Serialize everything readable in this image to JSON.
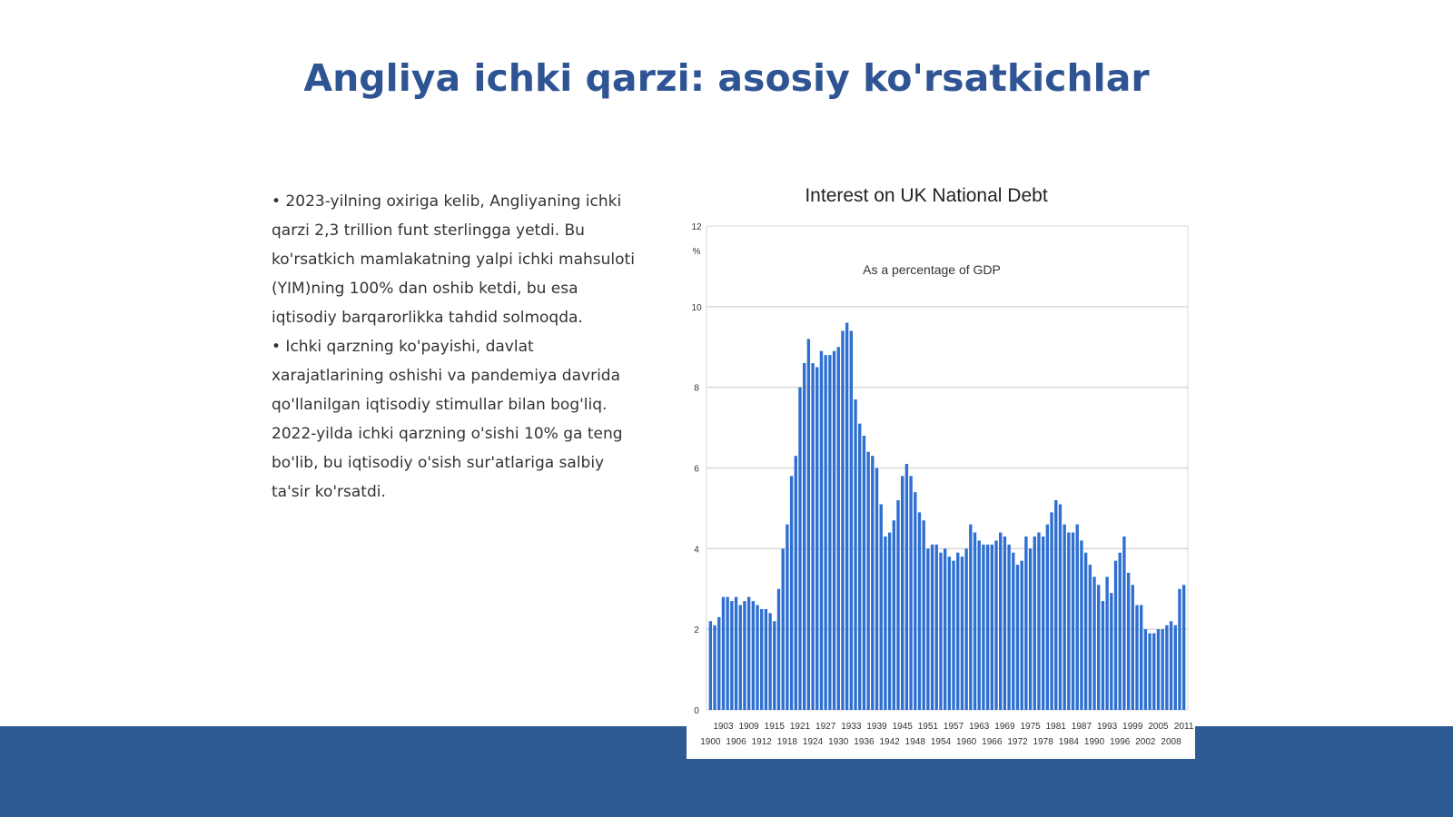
{
  "slide": {
    "title": "Angliya ichki qarzi: asosiy ko'rsatkichlar",
    "bullets": [
      "• 2023-yilning oxiriga kelib, Angliyaning ichki qarzi 2,3 trillion funt sterlingga yetdi. Bu ko'rsatkich mamlakatning yalpi ichki mahsuloti (YIM)ning 100% dan oshib ketdi, bu esa iqtisodiy barqarorlikka tahdid solmoqda.",
      "• Ichki qarzning ko'payishi, davlat xarajatlarining oshishi va pandemiya davrida qo'llanilgan iqtisodiy stimullar bilan bog'liq. 2022-yilda ichki qarzning o'sishi 10% ga teng bo'lib, bu iqtisodiy o'sish sur'atlariga salbiy ta'sir ko'rsatdi."
    ]
  },
  "colors": {
    "title": "#2f5494",
    "footer": "#2f5b95",
    "bars": "#2e6fd1",
    "grid": "#d9d9d9"
  },
  "chart_data": {
    "type": "bar",
    "title": "Interest on UK National Debt",
    "subtitle": "As a percentage of GDP",
    "ylabel": "%",
    "ylim": [
      0,
      12
    ],
    "yticks": [
      "0",
      "2",
      "4",
      "6",
      "8",
      "10",
      "12"
    ],
    "grid": true,
    "xticks_top": [
      "1903",
      "1909",
      "1915",
      "1921",
      "1927",
      "1933",
      "1939",
      "1945",
      "1951",
      "1957",
      "1963",
      "1969",
      "1975",
      "1981",
      "1987",
      "1993",
      "1999",
      "2005",
      "2011"
    ],
    "xticks_bottom": [
      "1900",
      "1906",
      "1912",
      "1918",
      "1924",
      "1930",
      "1936",
      "1942",
      "1948",
      "1954",
      "1960",
      "1966",
      "1972",
      "1978",
      "1984",
      "1990",
      "1996",
      "2002",
      "2008"
    ],
    "x_start": 1900,
    "values": [
      2.2,
      2.1,
      2.3,
      2.8,
      2.8,
      2.7,
      2.8,
      2.6,
      2.7,
      2.8,
      2.7,
      2.6,
      2.5,
      2.5,
      2.4,
      2.2,
      3.0,
      4.0,
      4.6,
      5.8,
      6.3,
      8.0,
      8.6,
      9.2,
      8.6,
      8.5,
      8.9,
      8.8,
      8.8,
      8.9,
      9.0,
      9.4,
      9.6,
      9.4,
      7.7,
      7.1,
      6.8,
      6.4,
      6.3,
      6.0,
      5.1,
      4.3,
      4.4,
      4.7,
      5.2,
      5.8,
      6.1,
      5.8,
      5.4,
      4.9,
      4.7,
      4.0,
      4.1,
      4.1,
      3.9,
      4.0,
      3.8,
      3.7,
      3.9,
      3.8,
      4.0,
      4.6,
      4.4,
      4.2,
      4.1,
      4.1,
      4.1,
      4.2,
      4.4,
      4.3,
      4.1,
      3.9,
      3.6,
      3.7,
      4.3,
      4.0,
      4.3,
      4.4,
      4.3,
      4.6,
      4.9,
      5.2,
      5.1,
      4.6,
      4.4,
      4.4,
      4.6,
      4.2,
      3.9,
      3.6,
      3.3,
      3.1,
      2.7,
      3.3,
      2.9,
      3.7,
      3.9,
      4.3,
      3.4,
      3.1,
      2.6,
      2.6,
      2.0,
      1.9,
      1.9,
      2.0,
      2.0,
      2.1,
      2.2,
      2.1,
      3.0,
      3.1
    ]
  }
}
